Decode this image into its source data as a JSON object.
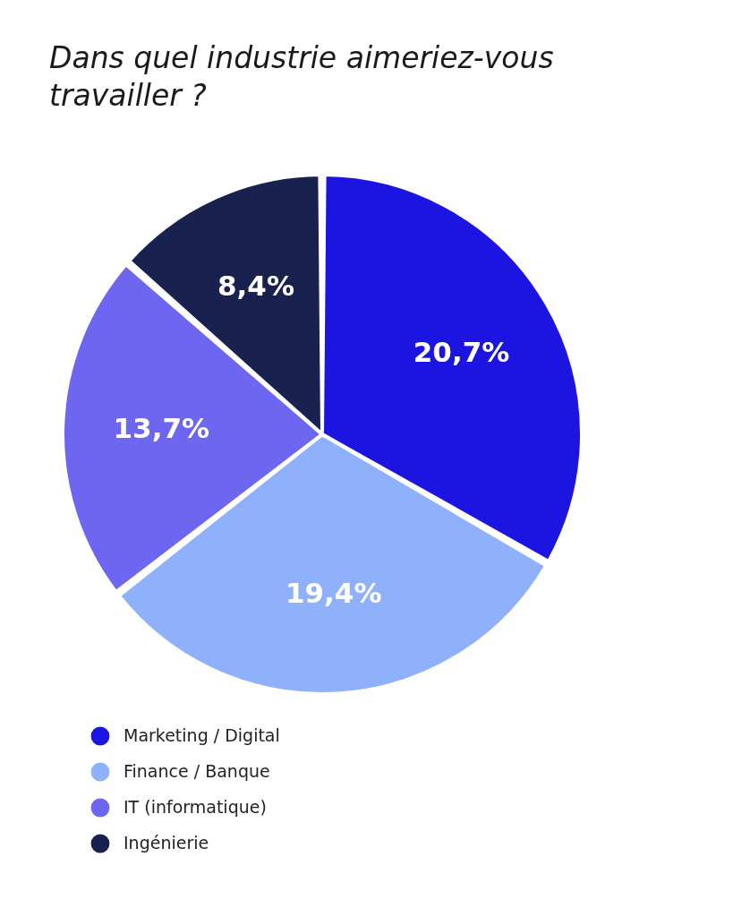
{
  "chart_data": {
    "type": "pie",
    "title": "Dans quel industrie aimeriez-vous travailler ?",
    "categories": [
      "Marketing / Digital",
      "Finance / Banque",
      "IT (informatique)",
      "Ingénierie"
    ],
    "values": [
      20.7,
      19.4,
      13.7,
      8.4
    ],
    "colors": [
      "#1c14e0",
      "#8fb1fb",
      "#6c66f0",
      "#19214f"
    ],
    "value_labels": [
      "20,7%",
      "19,4%",
      "13,7%",
      "8,4%"
    ],
    "legend": "bottom left"
  }
}
